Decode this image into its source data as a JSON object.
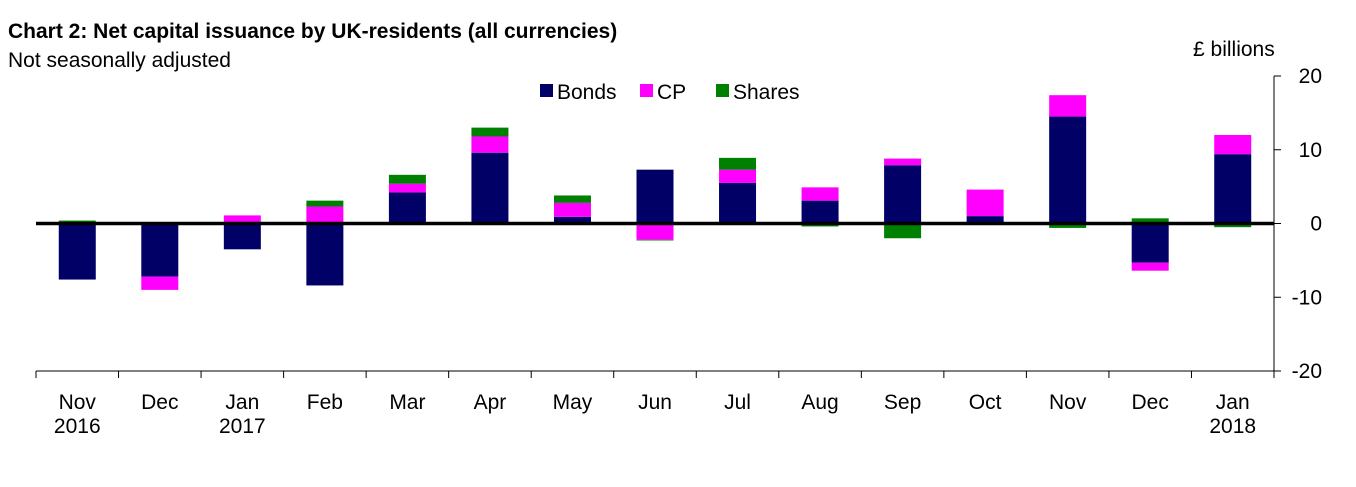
{
  "chart_data": {
    "type": "bar",
    "stacked": true,
    "title": "Chart 2: Net capital issuance by UK-residents (all currencies)",
    "subtitle": "Not seasonally adjusted",
    "ylabel": "£ billions",
    "ylim": [
      -20,
      20
    ],
    "yticks": [
      20,
      10,
      0,
      -10,
      -20
    ],
    "y_axis_side": "right",
    "grid": false,
    "legend_position": "top-center",
    "categories": [
      [
        "Nov",
        "2016"
      ],
      [
        "Dec",
        ""
      ],
      [
        "Jan",
        "2017"
      ],
      [
        "Feb",
        ""
      ],
      [
        "Mar",
        ""
      ],
      [
        "Apr",
        ""
      ],
      [
        "May",
        ""
      ],
      [
        "Jun",
        ""
      ],
      [
        "Jul",
        ""
      ],
      [
        "Aug",
        ""
      ],
      [
        "Sep",
        ""
      ],
      [
        "Oct",
        ""
      ],
      [
        "Nov",
        ""
      ],
      [
        "Dec",
        ""
      ],
      [
        "Jan",
        "2018"
      ]
    ],
    "series": [
      {
        "name": "Bonds",
        "color": "#000066",
        "values": [
          -7.6,
          -7.2,
          -3.5,
          -8.4,
          4.2,
          9.6,
          0.9,
          7.3,
          5.5,
          3.1,
          7.9,
          1.0,
          14.5,
          -5.3,
          9.4
        ]
      },
      {
        "name": "CP",
        "color": "#ff00ff",
        "values": [
          0,
          -1.8,
          1.1,
          2.3,
          1.2,
          2.2,
          1.9,
          -2.2,
          1.8,
          1.8,
          0.9,
          3.6,
          2.9,
          -1.1,
          2.6
        ]
      },
      {
        "name": "Shares",
        "color": "#008000",
        "values": [
          0.4,
          0,
          0,
          0.8,
          1.2,
          1.2,
          1.0,
          -0.1,
          1.6,
          -0.4,
          -2.0,
          0,
          -0.6,
          0.7,
          -0.5
        ]
      }
    ]
  }
}
